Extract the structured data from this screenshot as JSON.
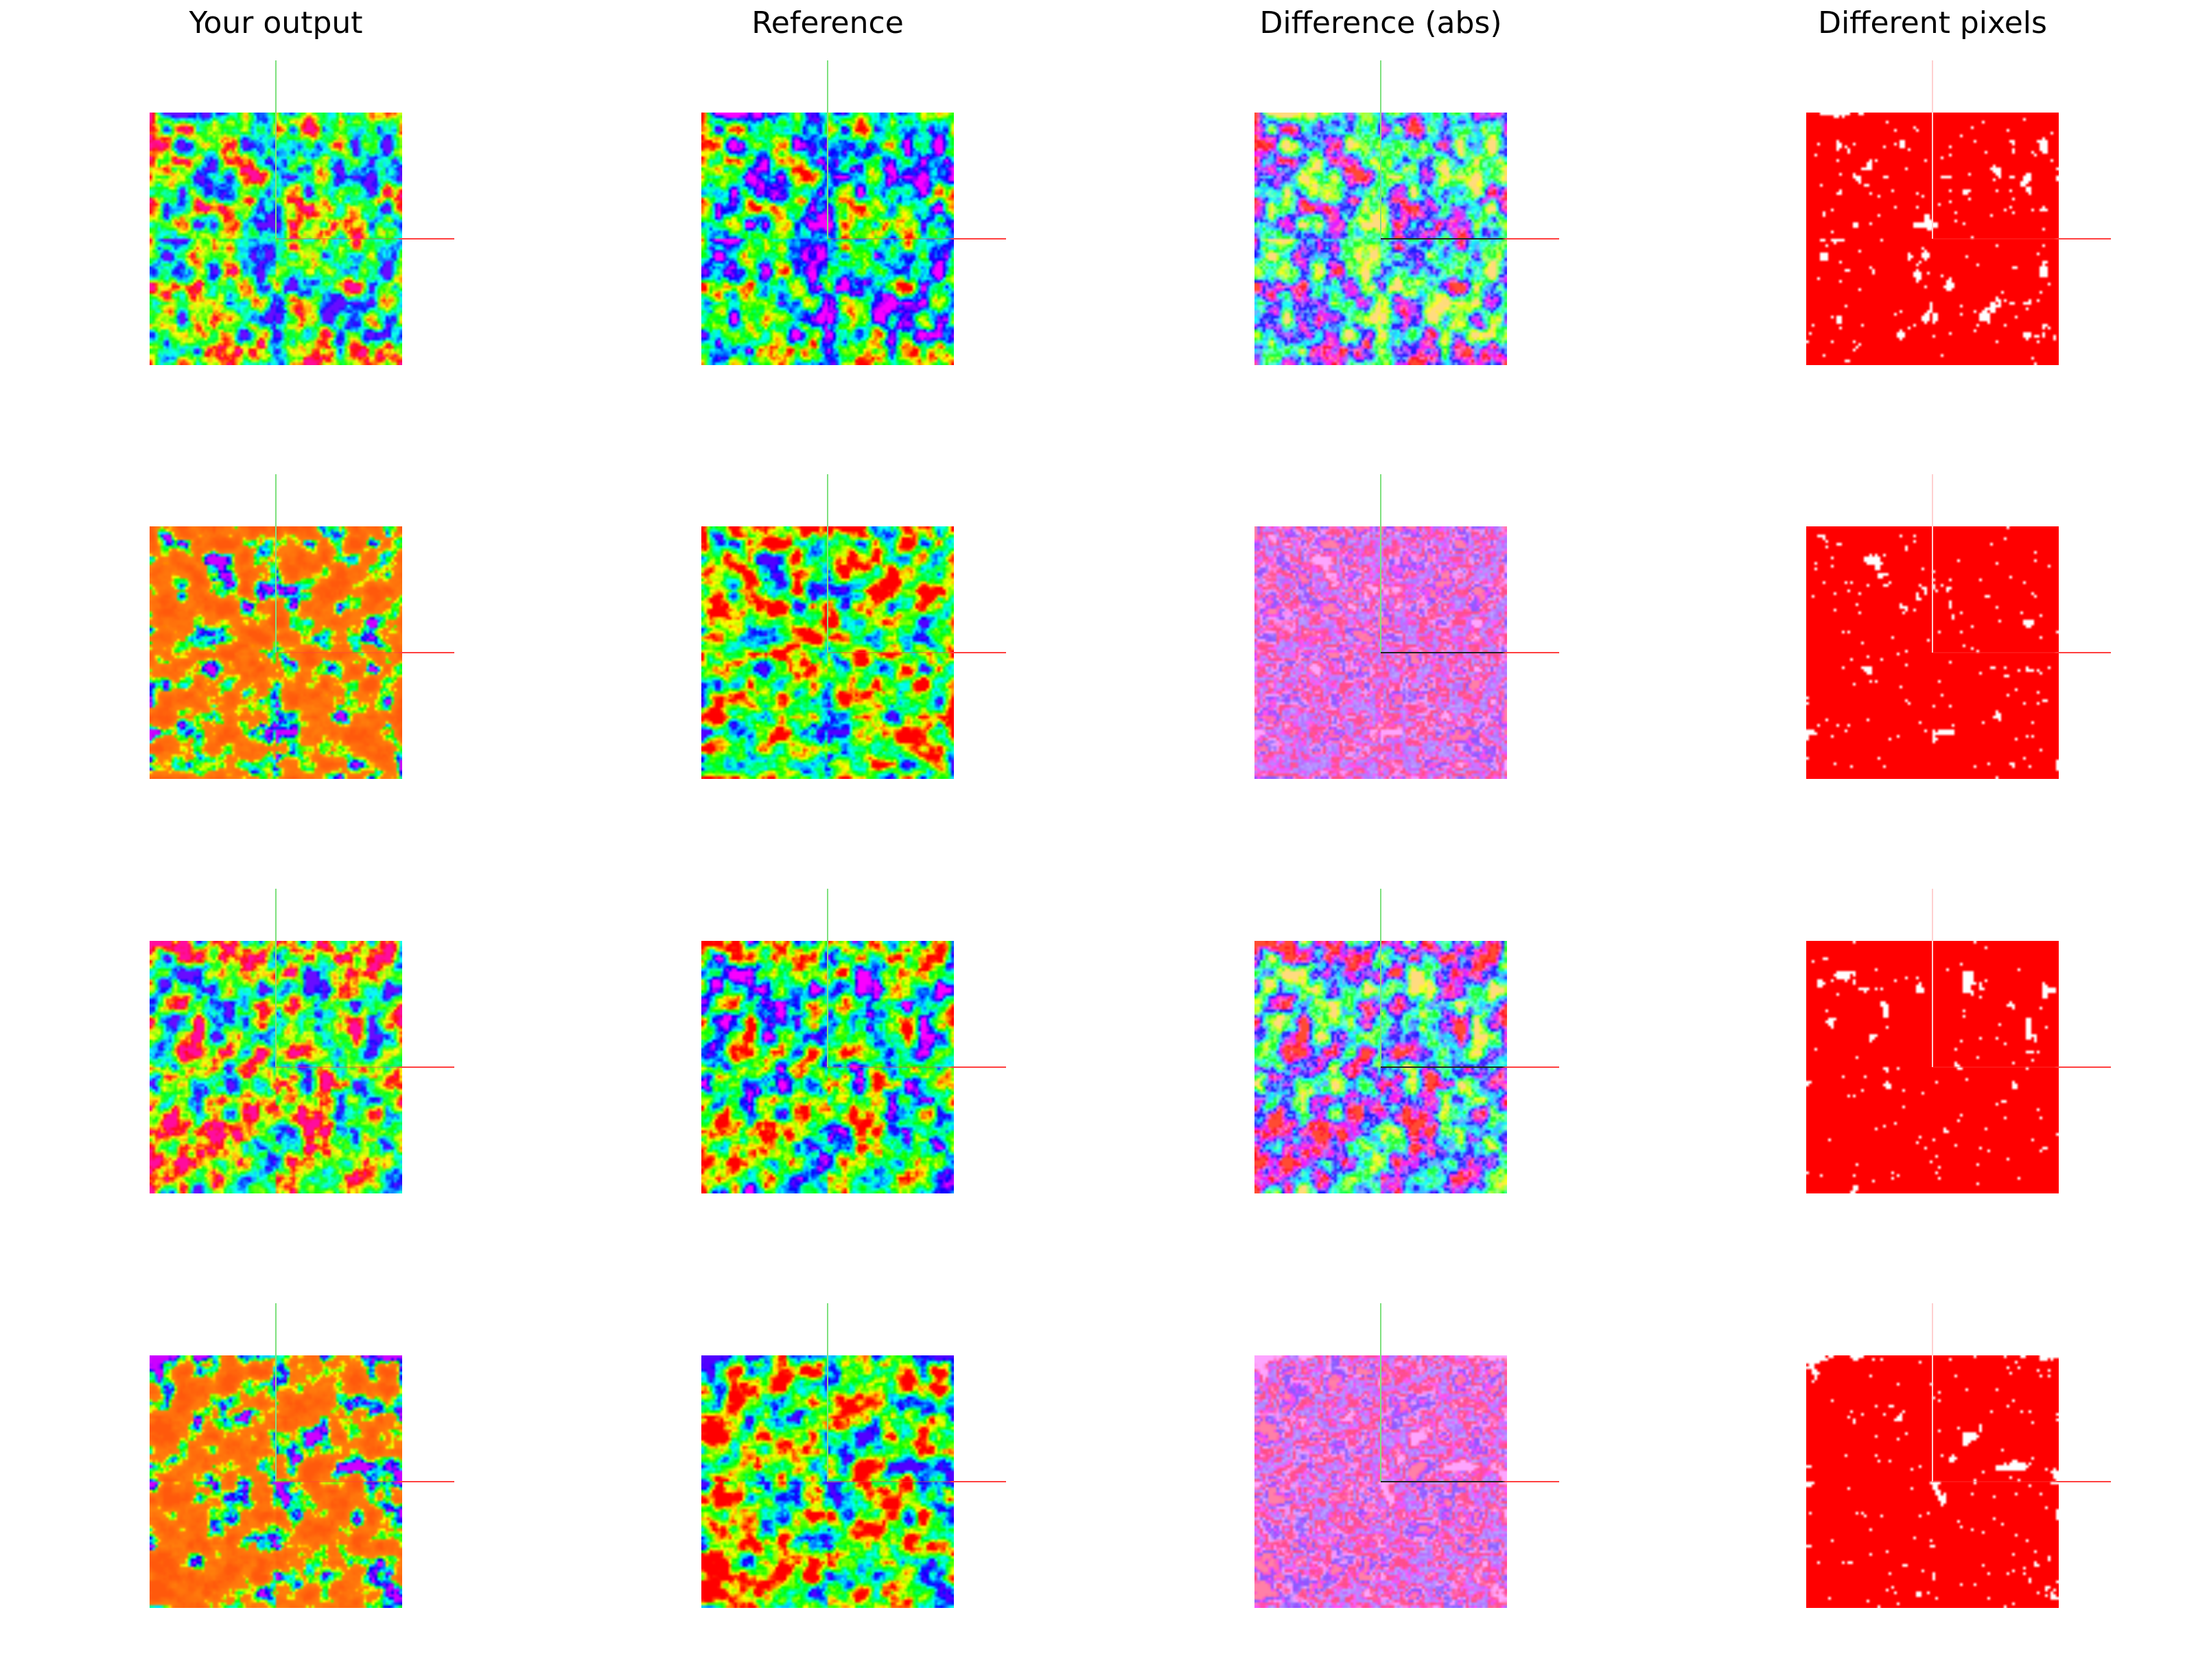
{
  "figure": {
    "columns": [
      {
        "id": "output",
        "title": "Your output"
      },
      {
        "id": "reference",
        "title": "Reference"
      },
      {
        "id": "difference",
        "title": "Difference (abs)"
      },
      {
        "id": "different-pixels",
        "title": "Different pixels"
      }
    ],
    "rows": 4
  },
  "colors": {
    "background": "#ffffff",
    "axis_green": "#7fe07f",
    "axis_red": "#ff4040",
    "axis_dark": "#222222",
    "diff_mask": "#ff0000"
  },
  "panels": [
    {
      "row": 1,
      "col": "output",
      "palette": "hsv-shifted",
      "seed": 11
    },
    {
      "row": 1,
      "col": "reference",
      "palette": "rainbow",
      "seed": 11
    },
    {
      "row": 1,
      "col": "difference",
      "palette": "pastel",
      "seed": 11
    },
    {
      "row": 1,
      "col": "different-pixels",
      "palette": "mask",
      "seed": 11
    },
    {
      "row": 2,
      "col": "output",
      "palette": "orange",
      "seed": 23
    },
    {
      "row": 2,
      "col": "reference",
      "palette": "rainbow-warm",
      "seed": 23
    },
    {
      "row": 2,
      "col": "difference",
      "palette": "pastel-pink",
      "seed": 23
    },
    {
      "row": 2,
      "col": "different-pixels",
      "palette": "mask",
      "seed": 23
    },
    {
      "row": 3,
      "col": "output",
      "palette": "hsv-shifted",
      "seed": 37
    },
    {
      "row": 3,
      "col": "reference",
      "palette": "rainbow",
      "seed": 37
    },
    {
      "row": 3,
      "col": "difference",
      "palette": "pastel",
      "seed": 37
    },
    {
      "row": 3,
      "col": "different-pixels",
      "palette": "mask",
      "seed": 37
    },
    {
      "row": 4,
      "col": "output",
      "palette": "orange",
      "seed": 53
    },
    {
      "row": 4,
      "col": "reference",
      "palette": "rainbow-warm",
      "seed": 53
    },
    {
      "row": 4,
      "col": "difference",
      "palette": "pastel-pink",
      "seed": 53
    },
    {
      "row": 4,
      "col": "different-pixels",
      "palette": "mask",
      "seed": 53
    }
  ]
}
